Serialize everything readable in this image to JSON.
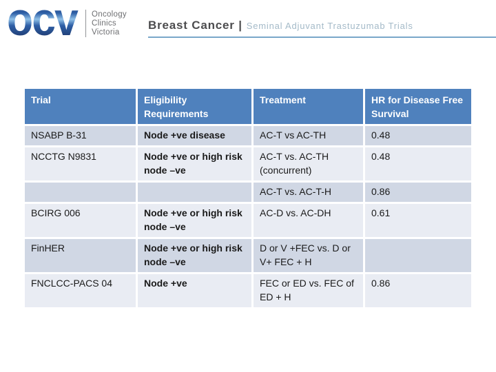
{
  "logo": {
    "acronym": "ocv",
    "name_lines": [
      "Oncology",
      "Clinics",
      "Victoria"
    ]
  },
  "header": {
    "title": "Breast Cancer |",
    "subtitle": "Seminal Adjuvant Trastuzumab Trials"
  },
  "colors": {
    "header-bg": "#4F81BD",
    "band-dark": "#D0D7E4",
    "band-light": "#E9ECF3",
    "underline": "#79A7C9",
    "title": "#4C4C4E",
    "subtitle": "#A4BAC8",
    "logo-text": "#6D6E71",
    "cell-text": "#1A1A1A",
    "logo-grad-top": "#1F2D5F",
    "logo-grad-mid": "#2E5FA6",
    "logo-grad-light": "#8FC0E8",
    "logo-grad-bottom": "#16234D"
  },
  "table": {
    "columns": [
      "Trial",
      "Eligibility Requirements",
      "Treatment",
      "HR for Disease Free Survival"
    ],
    "rows": [
      [
        "NSABP B-31",
        "Node +ve disease",
        "AC-T vs AC-TH",
        "0.48"
      ],
      [
        "NCCTG N9831",
        "Node +ve or high risk node –ve",
        "AC-T vs. AC-TH (concurrent)",
        "0.48"
      ],
      [
        "",
        "",
        "AC-T vs. AC-T-H",
        "0.86"
      ],
      [
        "BCIRG 006",
        "Node +ve or high risk node –ve",
        "AC-D vs. AC-DH",
        "0.61"
      ],
      [
        "FinHER",
        "Node +ve or high risk node –ve",
        "D or V +FEC vs. D or V+ FEC + H",
        ""
      ],
      [
        "FNCLCC-PACS 04",
        "Node +ve",
        "FEC or ED vs. FEC of ED + H",
        "0.86"
      ]
    ]
  }
}
